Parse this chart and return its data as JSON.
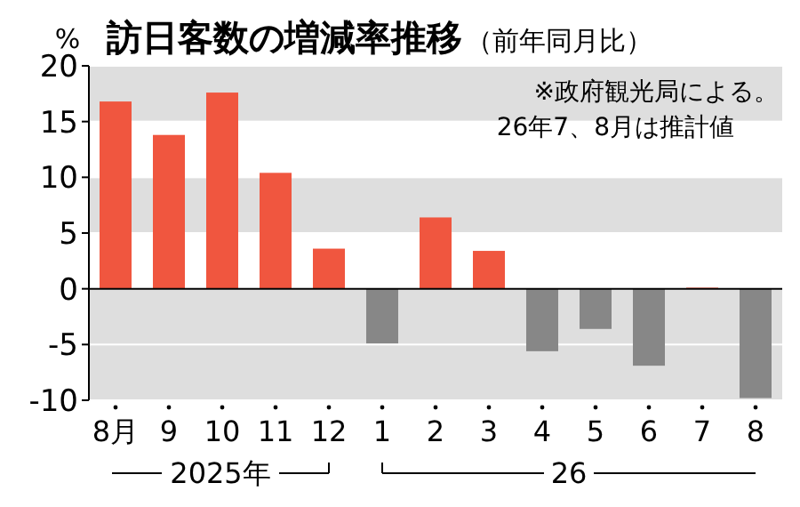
{
  "chart_data": {
    "type": "bar",
    "title": "訪日客数の増減率推移",
    "subtitle": "（前年同月比）",
    "ylabel": "%",
    "categories": [
      "8月",
      "9",
      "10",
      "11",
      "12",
      "1",
      "2",
      "3",
      "4",
      "5",
      "6",
      "7",
      "8"
    ],
    "values": [
      16.8,
      13.8,
      17.6,
      10.4,
      3.6,
      -4.9,
      6.4,
      3.4,
      -5.6,
      -3.6,
      -6.9,
      0.1,
      -9.8
    ],
    "colors": [
      "#f0563f",
      "#f0563f",
      "#f0563f",
      "#f0563f",
      "#f0563f",
      "#878787",
      "#f0563f",
      "#f0563f",
      "#878787",
      "#878787",
      "#878787",
      "#f0563f",
      "#878787"
    ],
    "ylim": [
      -10,
      20
    ],
    "yticks": [
      -10,
      -5,
      0,
      5,
      10,
      15,
      20
    ],
    "bands": [
      {
        "axis": "y",
        "from": 15,
        "to": 20,
        "color": "#dedede"
      },
      {
        "axis": "y",
        "from": 5,
        "to": 10,
        "color": "#dedede"
      },
      {
        "axis": "y",
        "from": -5,
        "to": 0,
        "color": "#dedede"
      },
      {
        "axis": "y",
        "from": -10,
        "to": -5,
        "color": "#dedede"
      }
    ],
    "annotations": [
      "※政府観光局による。",
      "26年7、8月は推計値",
      "2025年",
      "26"
    ]
  }
}
